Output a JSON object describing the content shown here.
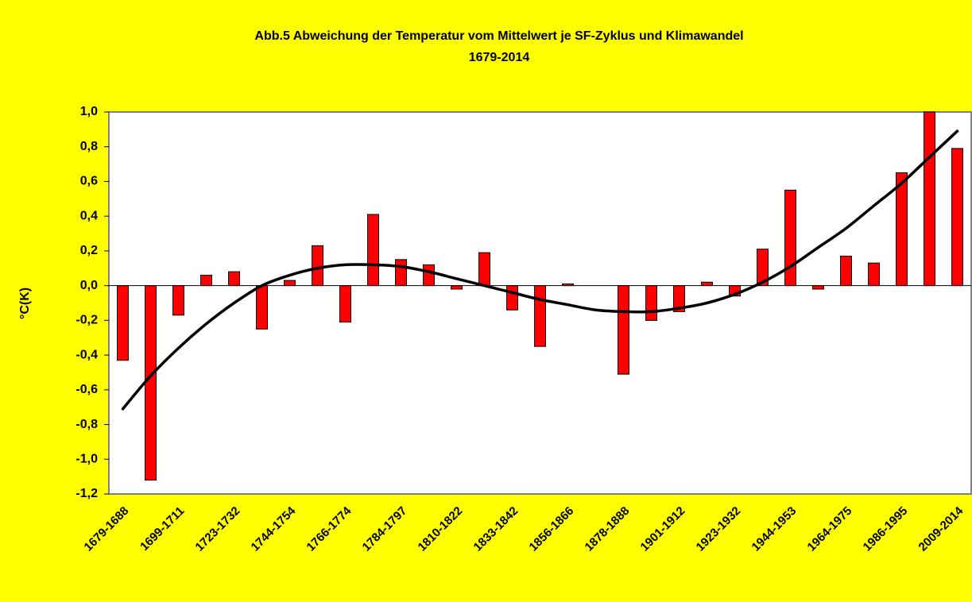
{
  "chart_data": {
    "type": "bar",
    "title": "Abb.5 Abweichung der Temperatur vom Mittelwert je SF-Zyklus und Klimawandel",
    "subtitle": "1679-2014",
    "ylabel": "°C(K)",
    "categories": [
      "1679-1688",
      null,
      "1699-1711",
      null,
      "1723-1732",
      null,
      "1744-1754",
      null,
      "1766-1774",
      null,
      "1784-1797",
      null,
      "1810-1822",
      null,
      "1833-1842",
      null,
      "1856-1866",
      null,
      "1878-1888",
      null,
      "1901-1912",
      null,
      "1923-1932",
      null,
      "1944-1953",
      null,
      "1964-1975",
      null,
      "1986-1995",
      null,
      "2009-2014"
    ],
    "values": [
      -0.43,
      -1.12,
      -0.17,
      0.06,
      0.08,
      -0.25,
      0.03,
      0.23,
      -0.21,
      0.41,
      0.15,
      0.12,
      -0.02,
      0.19,
      -0.14,
      -0.35,
      0.01,
      0,
      -0.51,
      -0.2,
      -0.15,
      0.02,
      -0.06,
      0.21,
      0.55,
      -0.02,
      0.17,
      0.13,
      0.65,
      1.0,
      0.79
    ],
    "color": "#ff0000",
    "trend": {
      "color": "#000000",
      "values": [
        -0.71,
        -0.52,
        -0.36,
        -0.22,
        -0.1,
        0.0,
        0.06,
        0.1,
        0.12,
        0.12,
        0.11,
        0.08,
        0.04,
        0.0,
        -0.04,
        -0.08,
        -0.11,
        -0.14,
        -0.15,
        -0.15,
        -0.13,
        -0.1,
        -0.05,
        0.02,
        0.11,
        0.22,
        0.33,
        0.46,
        0.59,
        0.74,
        0.89
      ]
    },
    "ylim": [
      -1.2,
      1.0
    ],
    "yticks": [
      {
        "value": 1.0,
        "label": "1,0"
      },
      {
        "value": 0.8,
        "label": "0,8"
      },
      {
        "value": 0.6,
        "label": "0,6"
      },
      {
        "value": 0.4,
        "label": "0,4"
      },
      {
        "value": 0.2,
        "label": "0,2"
      },
      {
        "value": 0,
        "label": "0,0"
      },
      {
        "value": -0.2,
        "label": "-0,2"
      },
      {
        "value": -0.4,
        "label": "-0,4"
      },
      {
        "value": -0.6,
        "label": "-0,6"
      },
      {
        "value": -0.8,
        "label": "-0,8"
      },
      {
        "value": -1.0,
        "label": "-1,0"
      },
      {
        "value": -1.2,
        "label": "-1,2"
      }
    ],
    "grid": false
  }
}
